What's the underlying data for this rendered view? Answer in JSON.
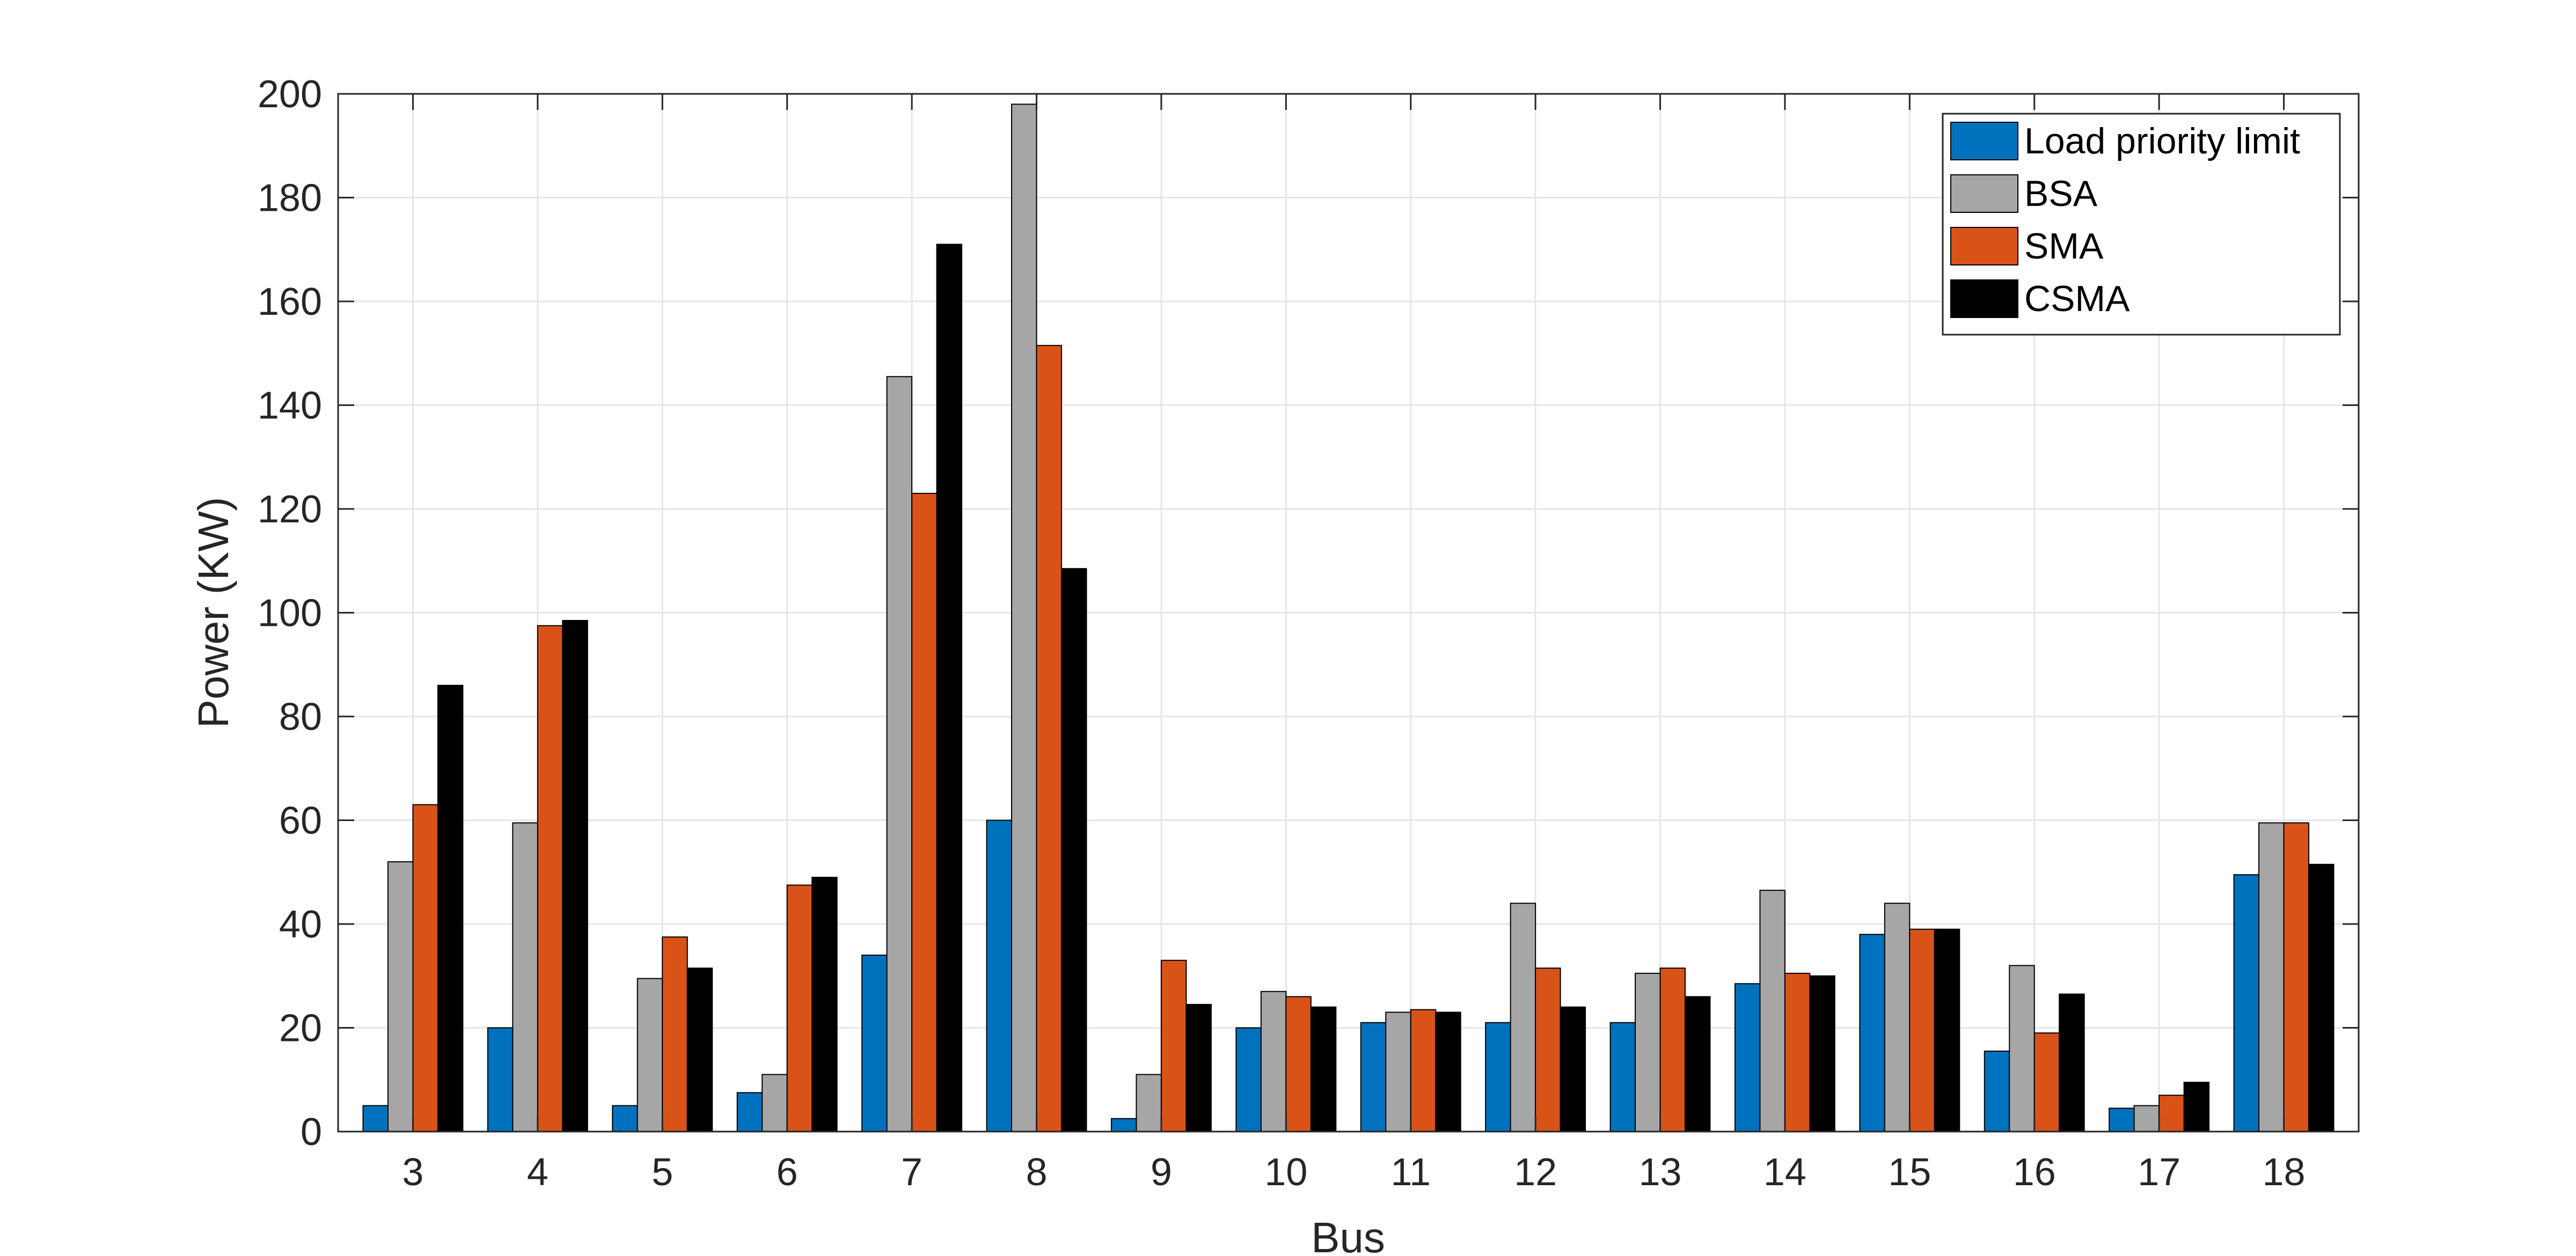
{
  "chart_data": {
    "type": "bar",
    "title": "",
    "xlabel": "Bus",
    "ylabel": "Power  (KW)",
    "ylim": [
      0,
      200
    ],
    "yticks": [
      0,
      20,
      40,
      60,
      80,
      100,
      120,
      140,
      160,
      180,
      200
    ],
    "categories": [
      "3",
      "4",
      "5",
      "6",
      "7",
      "8",
      "9",
      "10",
      "11",
      "12",
      "13",
      "14",
      "15",
      "16",
      "17",
      "18"
    ],
    "grid": true,
    "legend_position": "top-right",
    "series": [
      {
        "name": "Load priority limit",
        "color": "#0072BD",
        "values": [
          5,
          20,
          5,
          7.5,
          34,
          60,
          2.5,
          20,
          21,
          21,
          21,
          28.5,
          38,
          15.5,
          4.5,
          49.5
        ]
      },
      {
        "name": "BSA",
        "color": "#A6A6A6",
        "values": [
          52,
          59.5,
          29.5,
          11,
          145.5,
          198,
          11,
          27,
          23,
          44,
          30.5,
          46.5,
          44,
          32,
          5,
          59.5
        ]
      },
      {
        "name": "SMA",
        "color": "#D95319",
        "values": [
          63,
          97.5,
          37.5,
          47.5,
          123,
          151.5,
          33,
          26,
          23.5,
          31.5,
          31.5,
          30.5,
          39,
          19,
          7,
          59.5
        ]
      },
      {
        "name": "CSMA",
        "color": "#000000",
        "values": [
          86,
          98.5,
          31.5,
          49,
          171,
          108.5,
          24.5,
          24,
          23,
          24,
          26,
          30,
          39,
          26.5,
          9.5,
          51.5
        ]
      }
    ]
  }
}
